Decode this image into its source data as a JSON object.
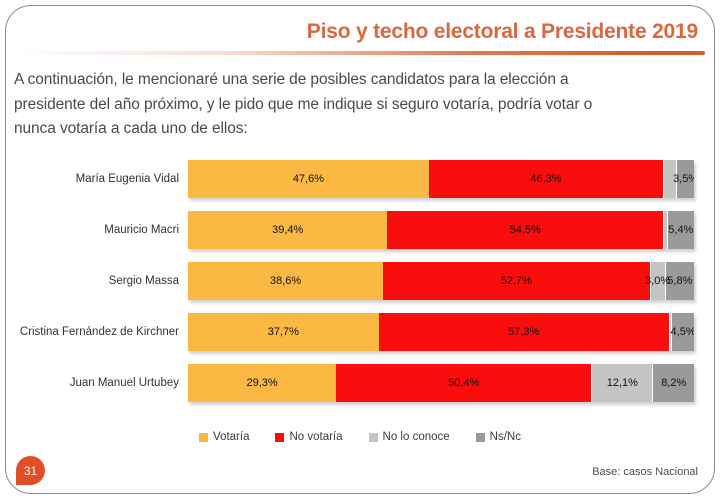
{
  "header": {
    "title": "Piso y techo electoral a Presidente 2019"
  },
  "intro_text": "A continuación, le mencionaré una serie de posibles candidatos para la elección a presidente del año próximo, y le pido que me indique si seguro votaría, podría votar o nunca votaría a cada uno de ellos:",
  "chart_data": {
    "type": "bar",
    "orientation": "horizontal",
    "stacked": true,
    "unit": "percent",
    "xlim": [
      0,
      100
    ],
    "legend_position": "bottom",
    "categories": [
      "María Eugenia Vidal",
      "Mauricio Macri",
      "Sergio Massa",
      "Cristina Fernández de Kirchner",
      "Juan Manuel Urtubey"
    ],
    "series": [
      {
        "key": "votaria",
        "name": "Votaría",
        "color": "#FBB843",
        "values": [
          47.6,
          39.4,
          38.6,
          37.7,
          29.3
        ],
        "labels": [
          "47,6%",
          "39,4%",
          "38,6%",
          "37,7%",
          "29,3%"
        ]
      },
      {
        "key": "no-votaria",
        "name": "No votaría",
        "color": "#F90D0D",
        "values": [
          46.3,
          54.5,
          52.7,
          57.3,
          50.4
        ],
        "labels": [
          "46,3%",
          "54,5%",
          "52,7%",
          "57,3%",
          "50,4%"
        ]
      },
      {
        "key": "no-lo-conoce",
        "name": "No lo conoce",
        "color": "#C4C4C4",
        "values": [
          2.6,
          0.7,
          3.0,
          0.5,
          12.1
        ],
        "labels": [
          "",
          "",
          "3,0%",
          "",
          "12,1%"
        ]
      },
      {
        "key": "ns-nc",
        "name": "Ns/Nc",
        "color": "#9A9A9A",
        "values": [
          3.5,
          5.4,
          5.8,
          4.5,
          8.2
        ],
        "labels": [
          "3,5%",
          "5,4%",
          "5,8%",
          "4,5%",
          "8,2%"
        ]
      }
    ]
  },
  "footer": {
    "page_number": "31",
    "base_note": "Base: casos Nacional"
  },
  "colors": {
    "title_orange": "#DB6740",
    "accent_orange": "#D85C28",
    "badge_orange": "#E14E26"
  }
}
